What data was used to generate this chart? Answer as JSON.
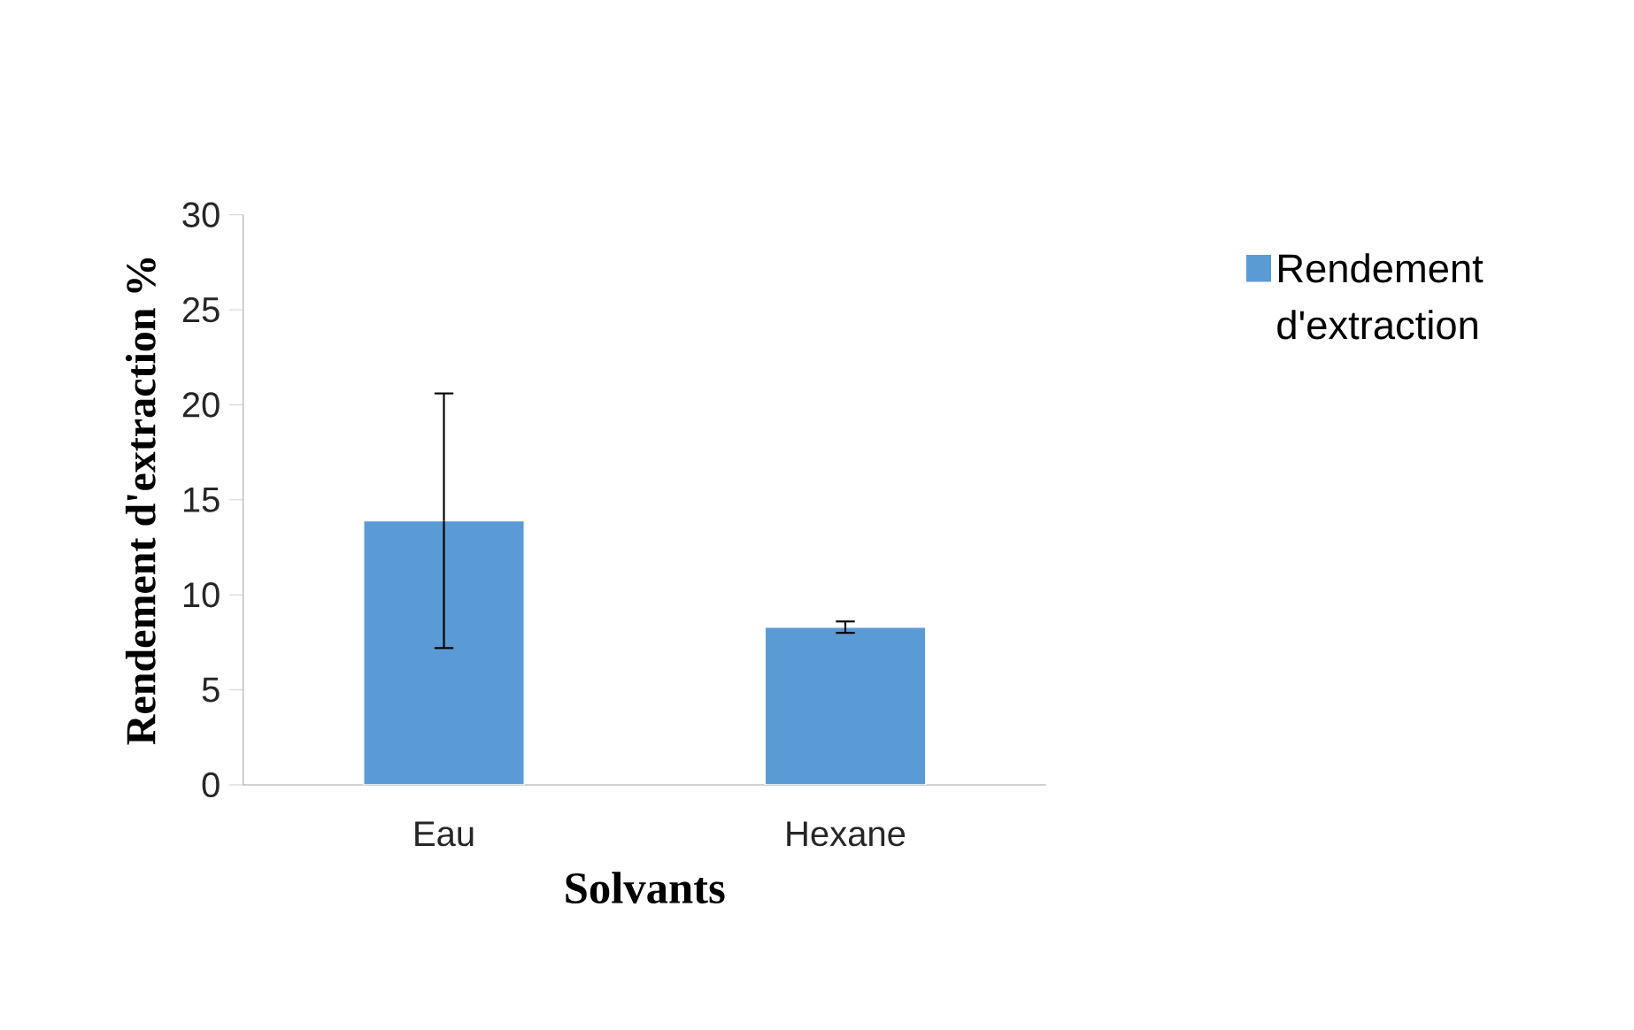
{
  "chart_data": {
    "type": "bar",
    "xlabel": "Solvants",
    "ylabel": "Rendement d'extraction %",
    "categories": [
      "Eau",
      "Hexane"
    ],
    "series": [
      {
        "name": "Rendement d'extraction",
        "color": "#5b9bd5",
        "values": [
          13.9,
          8.3
        ],
        "errors": [
          6.7,
          0.3
        ]
      }
    ],
    "ylim": [
      0,
      30
    ],
    "yticks": [
      0,
      5,
      10,
      15,
      20,
      25,
      30
    ],
    "legend": "right"
  }
}
